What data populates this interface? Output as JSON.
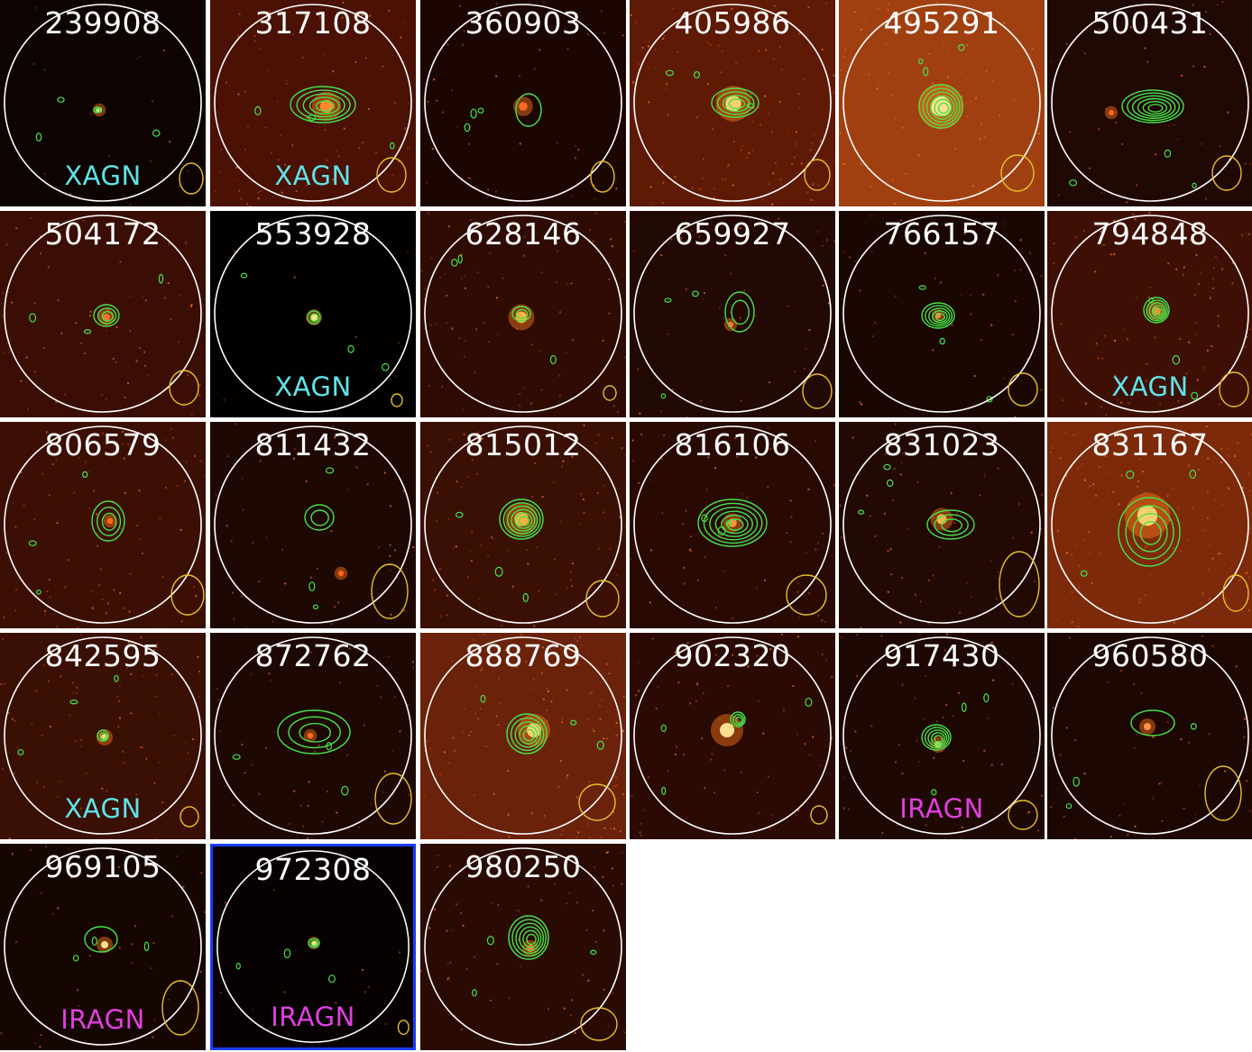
{
  "colors": {
    "xagn_label": "#5fe3e8",
    "iragn_label": "#e040e0",
    "contour": "#46e34a",
    "aperture": "#ffffff",
    "beam": "#e6c12a",
    "selection_border": "#1a3cff"
  },
  "panels": [
    {
      "id": "239908",
      "label": "XAGN",
      "bg": "#0d0402",
      "noise": 0.15,
      "src": [
        110,
        122,
        4,
        "#ffe6a0"
      ],
      "contours": [
        [
          108,
          122,
          4,
          3,
          2
        ]
      ],
      "beam": [
        212,
        198,
        13,
        17
      ]
    },
    {
      "id": "317108",
      "label": "XAGN",
      "bg": "#4a1104",
      "noise": 0.6,
      "src": [
        362,
        118,
        9,
        "#ff8a30"
      ],
      "contours": [
        [
          358,
          116,
          36,
          20,
          5
        ]
      ],
      "beam": [
        434,
        194,
        16,
        19
      ]
    },
    {
      "id": "360903",
      "label": "",
      "bg": "#1c0602",
      "noise": 0.3,
      "src": [
        580,
        118,
        6,
        "#ff6a20"
      ],
      "contours": [
        [
          586,
          122,
          14,
          18,
          1
        ]
      ],
      "beam": [
        668,
        196,
        13,
        17
      ]
    },
    {
      "id": "405986",
      "label": "",
      "bg": "#5e1a05",
      "noise": 0.8,
      "src": [
        813,
        115,
        11,
        "#ffd070"
      ],
      "contours": [
        [
          815,
          114,
          26,
          16,
          4
        ]
      ],
      "beam": [
        906,
        194,
        14,
        17
      ]
    },
    {
      "id": "495291",
      "label": "",
      "bg": "#a04010",
      "noise": 1.0,
      "src": [
        1043,
        118,
        14,
        "#ffe090"
      ],
      "contours": [
        [
          1043,
          118,
          24,
          24,
          6
        ]
      ],
      "beam": [
        1128,
        192,
        18,
        20
      ]
    },
    {
      "id": "500431",
      "label": "",
      "bg": "#200803",
      "noise": 0.3,
      "src": [
        1232,
        125,
        4,
        "#ff6020"
      ],
      "contours": [
        [
          1278,
          118,
          34,
          18,
          6
        ]
      ],
      "beam": [
        1360,
        192,
        16,
        19
      ]
    },
    {
      "id": "504172",
      "label": "",
      "bg": "#3a0e04",
      "noise": 0.5,
      "src": [
        118,
        352,
        5,
        "#ff7030"
      ],
      "contours": [
        [
          118,
          350,
          14,
          12,
          3
        ]
      ],
      "beam": [
        204,
        430,
        16,
        19
      ]
    },
    {
      "id": "553928",
      "label": "XAGN",
      "bg": "#020100",
      "noise": 0.05,
      "src": [
        348,
        352,
        5,
        "#ffe080"
      ],
      "contours": [
        [
          348,
          352,
          7,
          7,
          2
        ]
      ],
      "beam": [
        440,
        444,
        6,
        7
      ]
    },
    {
      "id": "628146",
      "label": "",
      "bg": "#2e0c04",
      "noise": 0.5,
      "src": [
        578,
        352,
        8,
        "#ffb040"
      ],
      "contours": [
        [
          578,
          348,
          10,
          8,
          2
        ]
      ],
      "beam": [
        676,
        436,
        7,
        8
      ]
    },
    {
      "id": "659927",
      "label": "",
      "bg": "#220903",
      "noise": 0.35,
      "src": [
        810,
        360,
        4,
        "#ff7030"
      ],
      "contours": [
        [
          820,
          346,
          16,
          22,
          2
        ]
      ],
      "beam": [
        906,
        434,
        16,
        19
      ]
    },
    {
      "id": "766157",
      "label": "",
      "bg": "#1a0702",
      "noise": 0.3,
      "src": [
        1040,
        350,
        4,
        "#ff8040"
      ],
      "contours": [
        [
          1040,
          350,
          18,
          14,
          5
        ]
      ],
      "beam": [
        1134,
        432,
        16,
        18
      ]
    },
    {
      "id": "794848",
      "label": "XAGN",
      "bg": "#3e1005",
      "noise": 0.55,
      "src": [
        1282,
        345,
        6,
        "#ff8a30"
      ],
      "contours": [
        [
          1282,
          344,
          14,
          14,
          5
        ]
      ],
      "beam": [
        1368,
        432,
        16,
        19
      ]
    },
    {
      "id": "806579",
      "label": "",
      "bg": "#3c0f04",
      "noise": 0.6,
      "src": [
        122,
        578,
        4,
        "#ff6a20"
      ],
      "contours": [
        [
          120,
          578,
          18,
          22,
          3
        ]
      ],
      "beam": [
        208,
        660,
        18,
        22
      ]
    },
    {
      "id": "811432",
      "label": "",
      "bg": "#1e0803",
      "noise": 0.35,
      "src": [
        378,
        636,
        4,
        "#ff6020"
      ],
      "contours": [
        [
          354,
          574,
          16,
          14,
          2
        ]
      ],
      "beam": [
        432,
        656,
        20,
        30
      ]
    },
    {
      "id": "815012",
      "label": "",
      "bg": "#3a0f04",
      "noise": 0.6,
      "src": [
        578,
        576,
        10,
        "#ffb040"
      ],
      "contours": [
        [
          578,
          576,
          24,
          22,
          6
        ]
      ],
      "beam": [
        668,
        664,
        18,
        20
      ]
    },
    {
      "id": "816106",
      "label": "",
      "bg": "#280a03",
      "noise": 0.45,
      "src": [
        812,
        580,
        6,
        "#ff9040"
      ],
      "contours": [
        [
          812,
          580,
          38,
          26,
          6
        ]
      ],
      "beam": [
        894,
        660,
        22,
        22
      ]
    },
    {
      "id": "831023",
      "label": "",
      "bg": "#220903",
      "noise": 0.4,
      "src": [
        1044,
        576,
        7,
        "#ffb050"
      ],
      "contours": [
        [
          1054,
          582,
          26,
          16,
          3
        ]
      ],
      "beam": [
        1130,
        648,
        22,
        36
      ]
    },
    {
      "id": "831167",
      "label": "",
      "bg": "#7c2a0a",
      "noise": 0.9,
      "src": [
        1272,
        572,
        14,
        "#ffd070"
      ],
      "contours": [
        [
          1274,
          590,
          34,
          38,
          4
        ]
      ],
      "beam": [
        1370,
        658,
        14,
        20
      ]
    },
    {
      "id": "842595",
      "label": "XAGN",
      "bg": "#3a0f04",
      "noise": 0.55,
      "src": [
        116,
        818,
        5,
        "#ffd070"
      ],
      "contours": [
        [
          114,
          816,
          6,
          6,
          2
        ]
      ],
      "beam": [
        210,
        906,
        10,
        11
      ]
    },
    {
      "id": "872762",
      "label": "",
      "bg": "#1e0803",
      "noise": 0.35,
      "src": [
        344,
        816,
        4,
        "#ff6a20"
      ],
      "contours": [
        [
          348,
          812,
          40,
          24,
          3
        ]
      ],
      "beam": [
        436,
        886,
        20,
        28
      ]
    },
    {
      "id": "888769",
      "label": "",
      "bg": "#6a220a",
      "noise": 0.9,
      "src": [
        592,
        810,
        10,
        "#ffd070"
      ],
      "contours": [
        [
          584,
          814,
          22,
          22,
          5
        ]
      ],
      "beam": [
        662,
        890,
        20,
        20
      ]
    },
    {
      "id": "902320",
      "label": "",
      "bg": "#2a0a03",
      "noise": 0.5,
      "src": [
        806,
        810,
        10,
        "#ffe090"
      ],
      "contours": [
        [
          818,
          798,
          8,
          8,
          3
        ]
      ],
      "beam": [
        908,
        904,
        9,
        10
      ]
    },
    {
      "id": "917430",
      "label": "IRAGN",
      "bg": "#1e0803",
      "noise": 0.35,
      "src": [
        1040,
        826,
        5,
        "#ffd070"
      ],
      "contours": [
        [
          1038,
          818,
          16,
          14,
          5
        ]
      ],
      "beam": [
        1134,
        904,
        16,
        16
      ]
    },
    {
      "id": "960580",
      "label": "",
      "bg": "#1c0702",
      "noise": 0.3,
      "src": [
        1272,
        806,
        5,
        "#ff9040"
      ],
      "contours": [
        [
          1278,
          802,
          24,
          14,
          1
        ]
      ],
      "beam": [
        1356,
        880,
        20,
        30
      ]
    },
    {
      "id": "969105",
      "label": "IRAGN",
      "bg": "#160602",
      "noise": 0.25,
      "src": [
        116,
        1048,
        5,
        "#ffe090"
      ],
      "contours": [
        [
          112,
          1042,
          18,
          14,
          1
        ]
      ],
      "beam": [
        200,
        1118,
        20,
        30
      ]
    },
    {
      "id": "972308",
      "label": "IRAGN",
      "bg": "#070201",
      "noise": 0.08,
      "src": [
        348,
        1046,
        4,
        "#ffe090"
      ],
      "contours": [
        [
          348,
          1046,
          6,
          5,
          2
        ]
      ],
      "beam": [
        450,
        1142,
        6,
        8
      ],
      "selected": true
    },
    {
      "id": "980250",
      "label": "",
      "bg": "#2a0b03",
      "noise": 0.45,
      "src": [
        588,
        1052,
        5,
        "#ff7030"
      ],
      "contours": [
        [
          586,
          1040,
          22,
          24,
          6
        ]
      ],
      "beam": [
        664,
        1136,
        20,
        18
      ]
    }
  ]
}
